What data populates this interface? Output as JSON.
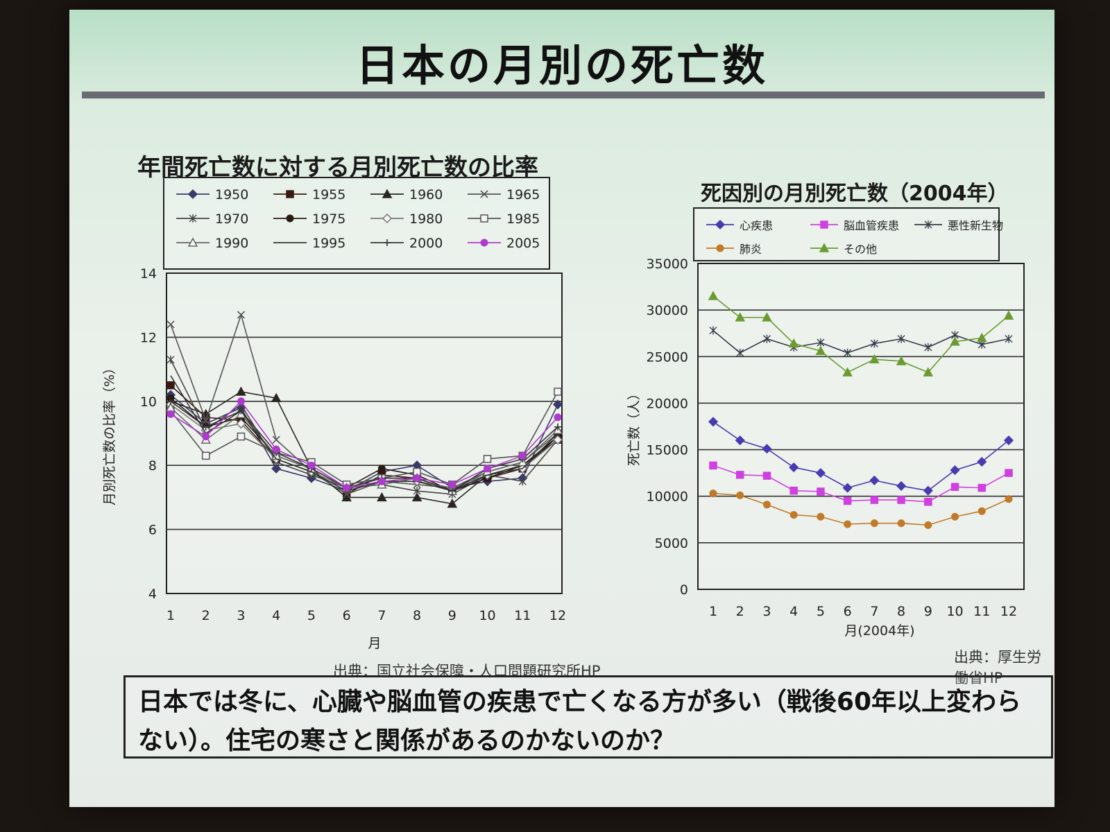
{
  "slide": {
    "title": "日本の月別の死亡数",
    "note_line1": "日本では冬に、心臓や脳血管の疾患で亡くなる方が多い（戦後60年以上変わら",
    "note_line2": "ない）。住宅の寒さと関係があるのかないのか？"
  },
  "chart_data": [
    {
      "type": "line",
      "title": "年間死亡数に対する月別死亡数の比率",
      "xlabel": "月",
      "ylabel": "月別死亡数の比率（%）",
      "source": "出典：国立社会保障・人口問題研究所HP",
      "ylim": [
        4,
        14
      ],
      "yticks": [
        "4",
        "6",
        "8",
        "10",
        "12",
        "14"
      ],
      "categories": [
        "1",
        "2",
        "3",
        "4",
        "5",
        "6",
        "7",
        "8",
        "9",
        "10",
        "11",
        "12"
      ],
      "grid": true,
      "legend": "top",
      "series": [
        {
          "name": "1950",
          "marker": "diamond",
          "color": "#3a3a6a",
          "values": [
            10.2,
            9.3,
            9.8,
            7.9,
            7.6,
            7.2,
            7.8,
            8.0,
            7.3,
            7.5,
            7.6,
            9.9
          ]
        },
        {
          "name": "1955",
          "marker": "square",
          "color": "#3a1a12",
          "values": [
            10.5,
            9.5,
            9.4,
            8.2,
            7.8,
            7.1,
            7.7,
            7.6,
            7.2,
            7.6,
            7.9,
            8.9
          ]
        },
        {
          "name": "1960",
          "marker": "triangle",
          "color": "#2a2622",
          "values": [
            10.0,
            9.6,
            10.3,
            10.1,
            7.9,
            7.0,
            7.0,
            7.0,
            6.8,
            7.7,
            8.0,
            8.8
          ]
        },
        {
          "name": "1965",
          "marker": "x",
          "color": "#555555",
          "values": [
            12.4,
            9.4,
            12.7,
            8.8,
            7.8,
            7.1,
            7.5,
            7.4,
            7.3,
            7.8,
            8.1,
            9.0
          ]
        },
        {
          "name": "1970",
          "marker": "star",
          "color": "#444444",
          "values": [
            11.3,
            9.1,
            9.9,
            8.1,
            7.7,
            7.3,
            7.4,
            7.2,
            7.1,
            7.7,
            7.5,
            8.8
          ]
        },
        {
          "name": "1975",
          "marker": "circle",
          "color": "#2a1a14",
          "values": [
            10.1,
            9.2,
            9.5,
            8.3,
            7.9,
            7.3,
            7.9,
            7.7,
            7.2,
            7.6,
            8.0,
            8.9
          ]
        },
        {
          "name": "1980",
          "marker": "diamond-open",
          "color": "#777777",
          "values": [
            9.9,
            9.1,
            9.3,
            8.2,
            7.8,
            7.3,
            7.5,
            7.5,
            7.3,
            7.7,
            7.9,
            8.8
          ]
        },
        {
          "name": "1985",
          "marker": "square-open",
          "color": "#555555",
          "values": [
            9.7,
            8.3,
            8.9,
            8.4,
            8.1,
            7.4,
            7.6,
            7.8,
            7.4,
            8.2,
            8.3,
            10.3
          ]
        },
        {
          "name": "1990",
          "marker": "triangle-open",
          "color": "#666666",
          "values": [
            9.8,
            8.8,
            9.6,
            8.3,
            7.9,
            7.3,
            7.4,
            7.6,
            7.2,
            7.8,
            8.1,
            9.1
          ]
        },
        {
          "name": "1995",
          "marker": "none",
          "color": "#333333",
          "values": [
            10.8,
            9.0,
            9.7,
            8.2,
            7.8,
            7.2,
            7.5,
            7.5,
            7.2,
            7.7,
            7.9,
            9.0
          ]
        },
        {
          "name": "2000",
          "marker": "plus",
          "color": "#333333",
          "values": [
            10.0,
            9.2,
            9.7,
            8.4,
            7.9,
            7.3,
            7.6,
            7.6,
            7.2,
            7.9,
            8.2,
            9.2
          ]
        },
        {
          "name": "2005",
          "marker": "circle",
          "color": "#b03ad0",
          "values": [
            9.6,
            8.9,
            10.0,
            8.5,
            8.0,
            7.3,
            7.5,
            7.6,
            7.4,
            7.9,
            8.3,
            9.5
          ]
        }
      ]
    },
    {
      "type": "line",
      "title": "死因別の月別死亡数（2004年）",
      "xlabel": "月(2004年)",
      "ylabel": "死亡数（人）",
      "source": "出典：厚生労働省HP",
      "ylim": [
        0,
        35000
      ],
      "yticks": [
        "0",
        "5000",
        "10000",
        "15000",
        "20000",
        "25000",
        "30000",
        "35000"
      ],
      "categories": [
        "1",
        "2",
        "3",
        "4",
        "5",
        "6",
        "7",
        "8",
        "9",
        "10",
        "11",
        "12"
      ],
      "grid": true,
      "legend": "top",
      "series": [
        {
          "name": "心疾患",
          "marker": "diamond",
          "color": "#4a3ab0",
          "values": [
            18000,
            16000,
            15100,
            13100,
            12500,
            10900,
            11700,
            11100,
            10600,
            12800,
            13700,
            16000
          ]
        },
        {
          "name": "脳血管疾患",
          "marker": "square",
          "color": "#d040e0",
          "values": [
            13300,
            12300,
            12200,
            10600,
            10500,
            9500,
            9600,
            9600,
            9400,
            11000,
            10900,
            12500
          ]
        },
        {
          "name": "悪性新生物",
          "marker": "star",
          "color": "#333a48",
          "values": [
            27800,
            25400,
            26900,
            26000,
            26500,
            25400,
            26400,
            26900,
            26000,
            27300,
            26300,
            26900
          ]
        },
        {
          "name": "肺炎",
          "marker": "circle",
          "color": "#c07a28",
          "values": [
            10300,
            10100,
            9100,
            8000,
            7800,
            7000,
            7100,
            7100,
            6900,
            7800,
            8400,
            9700
          ]
        },
        {
          "name": "その他",
          "marker": "triangle",
          "color": "#6a9a30",
          "values": [
            31500,
            29200,
            29200,
            26400,
            25600,
            23300,
            24700,
            24500,
            23300,
            26600,
            27000,
            29400
          ]
        }
      ]
    }
  ]
}
